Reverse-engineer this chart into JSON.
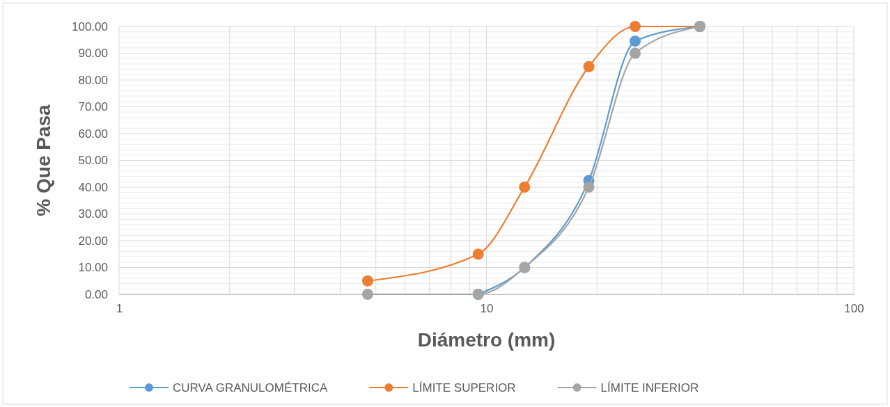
{
  "chart_data": {
    "type": "line",
    "xlabel": "Diámetro (mm)",
    "ylabel": "% Que Pasa",
    "log": "x",
    "grid": true,
    "legend": "bottom",
    "marker": "circle",
    "line_style": "solid",
    "xlim": [
      1,
      100
    ],
    "xticks": [
      1,
      10,
      100
    ],
    "ylim": [
      0,
      100
    ],
    "yticks": [
      {
        "value": 0,
        "label": "0.00"
      },
      {
        "value": 10,
        "label": "10.00"
      },
      {
        "value": 20,
        "label": "20.00"
      },
      {
        "value": 30,
        "label": "30.00"
      },
      {
        "value": 40,
        "label": "40.00"
      },
      {
        "value": 50,
        "label": "50.00"
      },
      {
        "value": 60,
        "label": "60.00"
      },
      {
        "value": 70,
        "label": "70.00"
      },
      {
        "value": 80,
        "label": "80.00"
      },
      {
        "value": 90,
        "label": "90.00"
      },
      {
        "value": 100,
        "label": "100.00"
      }
    ],
    "series": [
      {
        "name": "CURVA GRANULOMÉTRICA",
        "color": "#5b9bd5",
        "x": [
          9.5,
          12.7,
          19,
          25.4,
          38.1
        ],
        "values": [
          0,
          10,
          42.5,
          94.5,
          100
        ]
      },
      {
        "name": "LÍMITE SUPERIOR",
        "color": "#ed7d31",
        "x": [
          4.75,
          9.5,
          12.7,
          19,
          25.4,
          38.1
        ],
        "values": [
          5,
          15,
          40,
          85,
          100,
          100
        ]
      },
      {
        "name": "LÍMITE INFERIOR",
        "color": "#a5a5a5",
        "x": [
          4.75,
          9.5,
          12.7,
          19,
          25.4,
          38.1
        ],
        "values": [
          0,
          0,
          10,
          40,
          90,
          100
        ]
      }
    ]
  }
}
